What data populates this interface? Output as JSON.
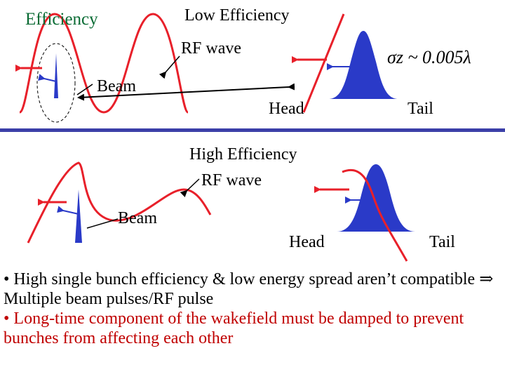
{
  "top": {
    "efficiency": "Efficiency",
    "low_efficiency": "Low Efficiency",
    "rf_wave": "RF wave",
    "beam": "Beam",
    "head": "Head",
    "tail": "Tail",
    "sigma": "σz ~ 0.005λ"
  },
  "bottom": {
    "high_efficiency": "High Efficiency",
    "rf_wave": "RF wave",
    "beam": "Beam",
    "head": "Head",
    "tail": "Tail"
  },
  "bullets": {
    "line1": "• High single bunch efficiency & low energy spread aren’t compatible ⇒ Multiple beam pulses/RF pulse",
    "line2": "• Long-time component of the wakefield must be damped to prevent bunches from affecting each other"
  },
  "colors": {
    "wave": "#e8202a",
    "bunch": "#2a3ac8",
    "divider": "#3b3fa8",
    "label_green": "#0a6b34",
    "bullet_red": "#c00000"
  }
}
